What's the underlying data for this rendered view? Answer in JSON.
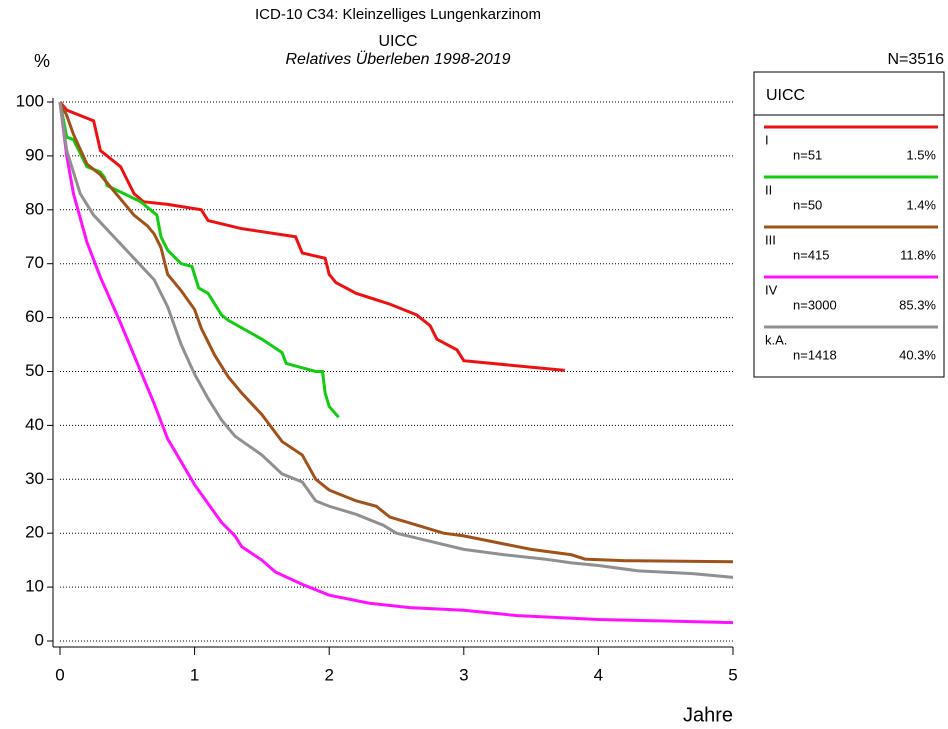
{
  "chart_data": {
    "type": "line",
    "title": "ICD-10 C34: Kleinzelliges Lungenkarzinom",
    "subtitle": "UICC",
    "subtitle2": "Relatives Überleben 1998-2019",
    "total_label": "N=3516",
    "y_label": "%",
    "x_label": "Jahre",
    "legend_title": "UICC",
    "xlim": [
      0,
      5
    ],
    "xticks": [
      0,
      1,
      2,
      3,
      4,
      5
    ],
    "ylim": [
      0,
      100
    ],
    "yticks": [
      0,
      10,
      20,
      30,
      40,
      50,
      60,
      70,
      80,
      90,
      100
    ],
    "grid": true,
    "series": [
      {
        "name": "I",
        "n_label": "n=51",
        "share_label": "1.5%",
        "color": "#ee1111",
        "x": [
          0,
          0.05,
          0.25,
          0.3,
          0.4,
          0.45,
          0.55,
          0.62,
          0.8,
          1.05,
          1.1,
          1.35,
          1.75,
          1.8,
          1.97,
          2,
          2.05,
          2.2,
          2.45,
          2.65,
          2.75,
          2.8,
          2.95,
          3,
          3.75
        ],
        "values": [
          100,
          98.5,
          96.5,
          91,
          89,
          88,
          83,
          81.5,
          81,
          80,
          78,
          76.5,
          75,
          72,
          71,
          68,
          66.5,
          64.5,
          62.5,
          60.5,
          58.5,
          56,
          54,
          52,
          50.2
        ]
      },
      {
        "name": "II",
        "n_label": "n=50",
        "share_label": "1.4%",
        "color": "#11cc11",
        "x": [
          0,
          0.05,
          0.1,
          0.2,
          0.3,
          0.33,
          0.35,
          0.6,
          0.72,
          0.75,
          0.8,
          0.9,
          0.98,
          1.03,
          1.1,
          1.2,
          1.25,
          1.5,
          1.65,
          1.68,
          1.9,
          1.95,
          1.97,
          2.0,
          2.07
        ],
        "values": [
          100,
          93.5,
          93,
          88,
          87,
          86,
          84.5,
          81.5,
          79,
          75,
          72.5,
          70,
          69.5,
          65.5,
          64.5,
          60.5,
          59.5,
          56,
          53.5,
          51.5,
          50,
          50,
          46,
          43.5,
          41.5
        ]
      },
      {
        "name": "III",
        "n_label": "n=415",
        "share_label": "11.8%",
        "color": "#a0521a",
        "x": [
          0,
          0.05,
          0.1,
          0.2,
          0.3,
          0.45,
          0.55,
          0.65,
          0.7,
          0.75,
          0.8,
          0.9,
          1.0,
          1.05,
          1.15,
          1.25,
          1.35,
          1.5,
          1.65,
          1.8,
          1.9,
          2.0,
          2.2,
          2.35,
          2.45,
          2.65,
          2.85,
          3.0,
          3.3,
          3.5,
          3.8,
          3.9,
          4.2,
          5
        ],
        "values": [
          100,
          97.5,
          94,
          88.5,
          86.5,
          82,
          79,
          77,
          75.5,
          73,
          68,
          65,
          61.5,
          58,
          53,
          49,
          46,
          42,
          37,
          34.5,
          30,
          28,
          26,
          25,
          23,
          21.5,
          20,
          19.5,
          18,
          17,
          16,
          15.2,
          14.9,
          14.7
        ]
      },
      {
        "name": "IV",
        "n_label": "n=3000",
        "share_label": "85.3%",
        "color": "#ff11ff",
        "x": [
          0,
          0.05,
          0.1,
          0.2,
          0.3,
          0.45,
          0.6,
          0.7,
          0.8,
          1.0,
          1.2,
          1.3,
          1.35,
          1.5,
          1.6,
          1.8,
          2.0,
          2.3,
          2.6,
          3.0,
          3.4,
          4.0,
          4.5,
          5
        ],
        "values": [
          100,
          90,
          83,
          74,
          67.5,
          59,
          50,
          44,
          37.5,
          29,
          22,
          19.5,
          17.5,
          15,
          12.8,
          10.5,
          8.5,
          7,
          6.2,
          5.7,
          4.7,
          4,
          3.7,
          3.4
        ]
      },
      {
        "name": "k.A.",
        "n_label": "n=1418",
        "share_label": "40.3%",
        "color": "#909090",
        "x": [
          0,
          0.05,
          0.15,
          0.25,
          0.4,
          0.55,
          0.7,
          0.8,
          0.9,
          1.0,
          1.1,
          1.2,
          1.3,
          1.5,
          1.65,
          1.8,
          1.9,
          2.0,
          2.2,
          2.4,
          2.5,
          2.75,
          3.0,
          3.3,
          3.6,
          3.8,
          4.0,
          4.3,
          4.7,
          5
        ],
        "values": [
          100,
          91,
          83,
          79,
          75,
          71,
          67,
          62,
          55,
          49.5,
          45,
          41,
          38,
          34.5,
          31,
          29.5,
          26,
          25,
          23.5,
          21.5,
          20,
          18.5,
          17,
          16,
          15.2,
          14.5,
          14,
          13,
          12.5,
          11.8
        ]
      }
    ]
  }
}
